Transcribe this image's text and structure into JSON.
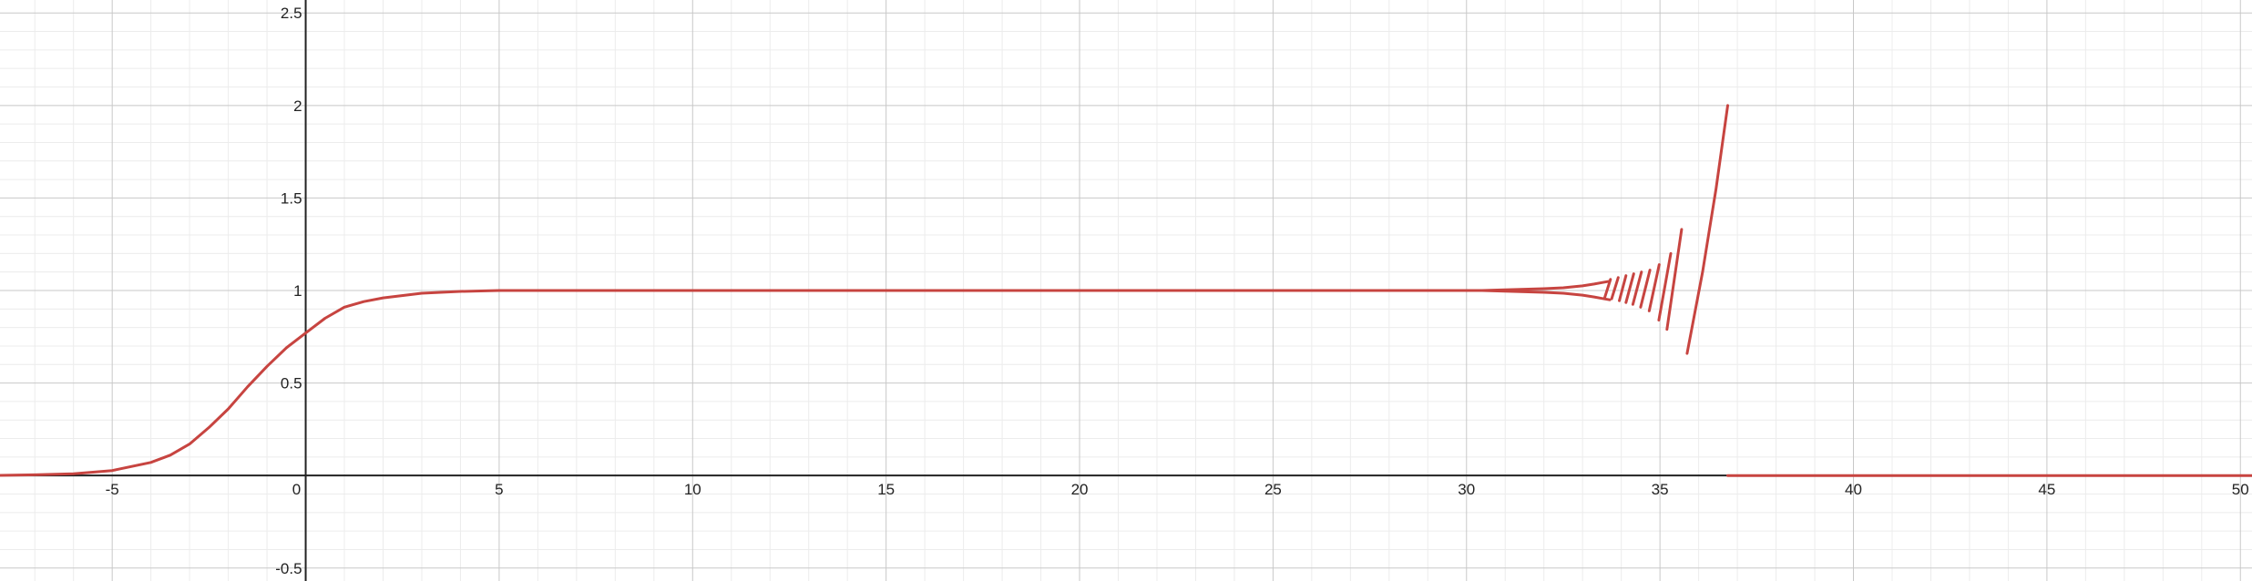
{
  "chart_data": {
    "type": "line",
    "title": "",
    "xlabel": "",
    "ylabel": "",
    "xlim": [
      -7.9,
      50.3
    ],
    "ylim": [
      -0.57,
      2.57
    ],
    "grid": true,
    "minor_grid": true,
    "x_ticks": [
      {
        "value": -5,
        "label": "-5"
      },
      {
        "value": 0,
        "label": "0"
      },
      {
        "value": 5,
        "label": "5"
      },
      {
        "value": 10,
        "label": "10"
      },
      {
        "value": 15,
        "label": "15"
      },
      {
        "value": 20,
        "label": "20"
      },
      {
        "value": 25,
        "label": "25"
      },
      {
        "value": 30,
        "label": "30"
      },
      {
        "value": 35,
        "label": "35"
      },
      {
        "value": 40,
        "label": "40"
      },
      {
        "value": 45,
        "label": "45"
      },
      {
        "value": 50,
        "label": "50"
      }
    ],
    "y_ticks": [
      {
        "value": -0.5,
        "label": "-0.5"
      },
      {
        "value": 0.5,
        "label": "0.5"
      },
      {
        "value": 1,
        "label": "1"
      },
      {
        "value": 1.5,
        "label": "1.5"
      },
      {
        "value": 2,
        "label": "2"
      },
      {
        "value": 2.5,
        "label": "2.5"
      }
    ],
    "series": [
      {
        "color": "#c74440",
        "segments": [
          [
            [
              -7.9,
              0.001
            ],
            [
              -7,
              0.004
            ],
            [
              -6,
              0.01
            ],
            [
              -5,
              0.027
            ],
            [
              -4,
              0.071
            ],
            [
              -3.5,
              0.11
            ],
            [
              -3,
              0.17
            ],
            [
              -2.5,
              0.26
            ],
            [
              -2,
              0.36
            ],
            [
              -1.5,
              0.48
            ],
            [
              -1,
              0.59
            ],
            [
              -0.5,
              0.69
            ],
            [
              0,
              0.77
            ],
            [
              0.5,
              0.85
            ],
            [
              1,
              0.91
            ],
            [
              1.5,
              0.94
            ],
            [
              2,
              0.96
            ],
            [
              3,
              0.985
            ],
            [
              4,
              0.995
            ],
            [
              5,
              1.0
            ],
            [
              10,
              1.0
            ],
            [
              20,
              1.0
            ],
            [
              30,
              1.0
            ],
            [
              30.5,
              1.0
            ]
          ],
          [
            [
              30.4,
              1.0
            ],
            [
              31,
              0.996
            ],
            [
              32,
              0.99
            ],
            [
              32.5,
              0.985
            ],
            [
              33,
              0.975
            ],
            [
              33.3,
              0.965
            ],
            [
              33.5,
              0.957
            ],
            [
              33.7,
              0.95
            ]
          ],
          [
            [
              30.4,
              1.0
            ],
            [
              31,
              1.004
            ],
            [
              32,
              1.01
            ],
            [
              32.5,
              1.015
            ],
            [
              33,
              1.025
            ],
            [
              33.3,
              1.035
            ],
            [
              33.5,
              1.043
            ],
            [
              33.7,
              1.05
            ]
          ],
          [
            [
              33.57,
              0.96
            ],
            [
              33.72,
              1.06
            ]
          ],
          [
            [
              33.75,
              0.955
            ],
            [
              33.92,
              1.07
            ]
          ],
          [
            [
              33.95,
              0.945
            ],
            [
              34.12,
              1.08
            ]
          ],
          [
            [
              34.12,
              0.935
            ],
            [
              34.32,
              1.09
            ]
          ],
          [
            [
              34.3,
              0.925
            ],
            [
              34.52,
              1.1
            ]
          ],
          [
            [
              34.5,
              0.91
            ],
            [
              34.74,
              1.11
            ]
          ],
          [
            [
              34.72,
              0.89
            ],
            [
              34.98,
              1.14
            ]
          ],
          [
            [
              34.97,
              0.84
            ],
            [
              35.28,
              1.2
            ]
          ],
          [
            [
              35.18,
              0.79
            ],
            [
              35.56,
              1.33
            ]
          ],
          [
            [
              35.7,
              0.66
            ],
            [
              36.1,
              1.1
            ],
            [
              36.45,
              1.55
            ],
            [
              36.75,
              2.0
            ]
          ],
          [
            [
              36.75,
              0
            ],
            [
              50.3,
              0
            ]
          ]
        ]
      }
    ]
  }
}
